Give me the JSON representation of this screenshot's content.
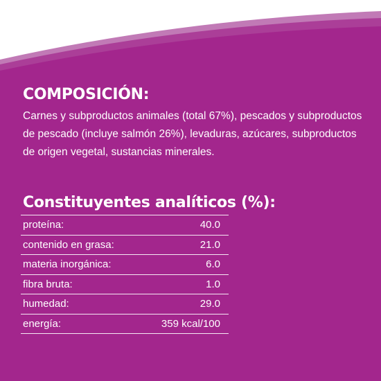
{
  "colors": {
    "background": "#a3268d",
    "band_light": "#c17ab6",
    "band_mid": "#ab3e98",
    "text": "#ffffff"
  },
  "composition": {
    "title": "COMPOSICIÓN:",
    "text": "Carnes y subproductos animales (total 67%), pescados y subproductos de pescado (incluye salmón 26%), levaduras, azúcares, subproductos de origen vegetal, sustancias minerales."
  },
  "analytic": {
    "title": "Constituyentes analíticos (%):",
    "rows": [
      {
        "label": "proteína:",
        "value": "40.0"
      },
      {
        "label": "contenido en grasa:",
        "value": "21.0"
      },
      {
        "label": "materia inorgánica:",
        "value": "6.0"
      },
      {
        "label": "fibra bruta:",
        "value": "1.0"
      },
      {
        "label": "humedad:",
        "value": "29.0"
      },
      {
        "label": "energía:",
        "value": "359 kcal/100"
      }
    ]
  }
}
